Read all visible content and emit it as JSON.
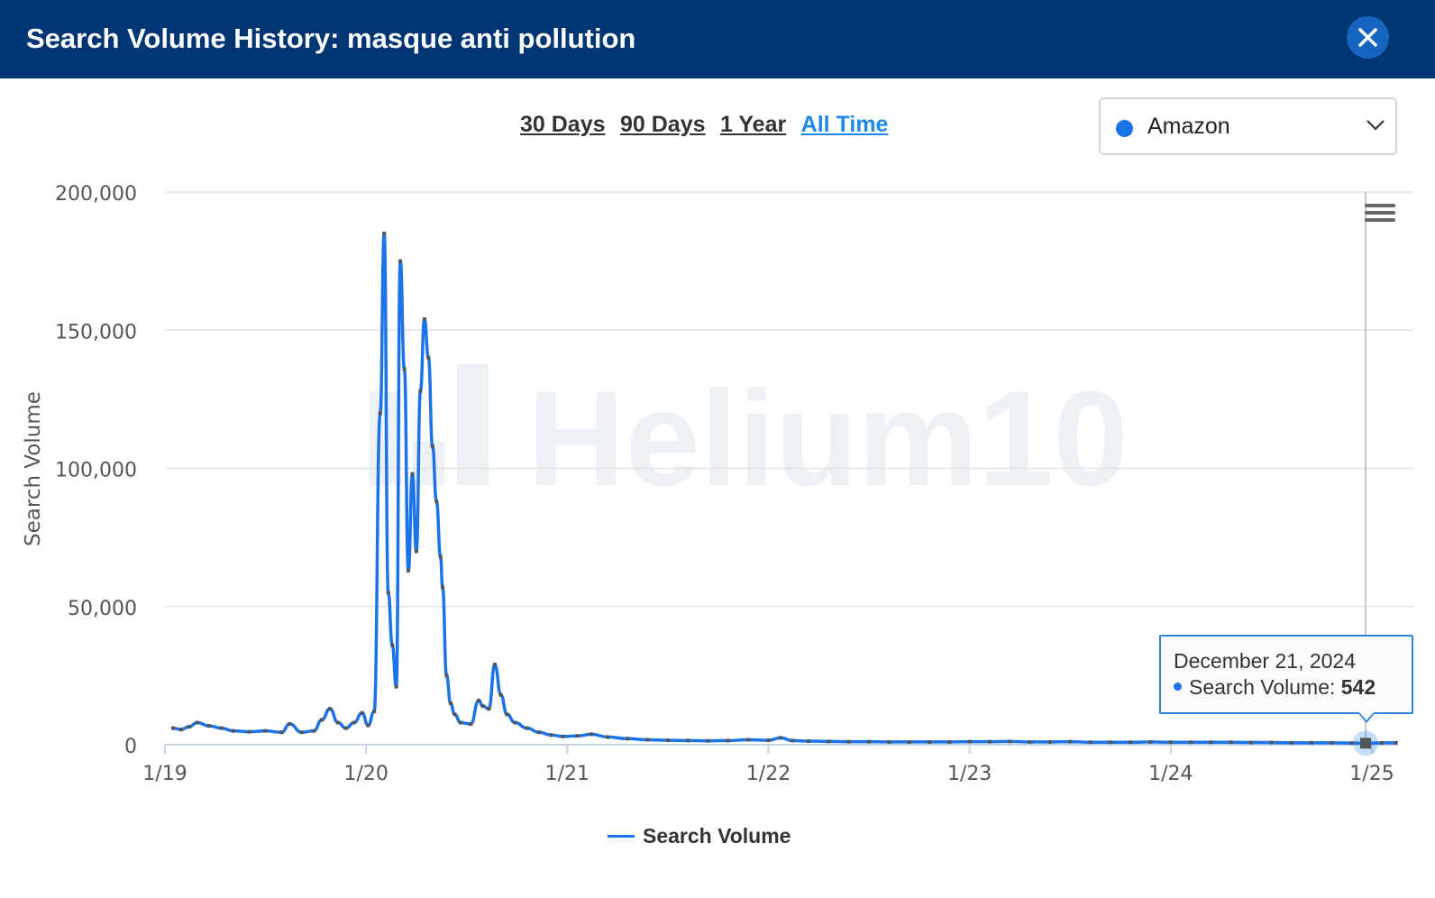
{
  "header": {
    "title": "Search Volume History: masque anti pollution",
    "close_icon": "close-icon"
  },
  "ranges": [
    {
      "label": "30 Days",
      "active": false
    },
    {
      "label": "90 Days",
      "active": false
    },
    {
      "label": "1 Year",
      "active": false
    },
    {
      "label": "All Time",
      "active": true
    }
  ],
  "marketplace": {
    "selected": "Amazon",
    "dot_color": "#1a73e8",
    "icon": "chevron-down-icon"
  },
  "watermark": "Helium 10",
  "tooltip": {
    "date": "December 21, 2024",
    "series": "Search Volume:",
    "value": "542"
  },
  "legend": {
    "label": "Search Volume"
  },
  "chart_data": {
    "type": "line",
    "ylabel": "Search Volume",
    "xlabel": "",
    "ylim": [
      0,
      200000
    ],
    "yticks": [
      "0",
      "50,000",
      "100,000",
      "150,000",
      "200,000"
    ],
    "xticks": [
      "1/19",
      "1/20",
      "1/21",
      "1/22",
      "1/23",
      "1/24",
      "1/25"
    ],
    "x_range": [
      2019.0,
      2025.15
    ],
    "grid": true,
    "series": [
      {
        "name": "Search Volume",
        "color": "#1a73e8",
        "points": [
          [
            2019.04,
            6000
          ],
          [
            2019.08,
            5500
          ],
          [
            2019.12,
            6500
          ],
          [
            2019.16,
            8000
          ],
          [
            2019.22,
            6800
          ],
          [
            2019.28,
            6000
          ],
          [
            2019.34,
            5000
          ],
          [
            2019.42,
            4700
          ],
          [
            2019.5,
            5000
          ],
          [
            2019.58,
            4500
          ],
          [
            2019.62,
            7500
          ],
          [
            2019.68,
            4500
          ],
          [
            2019.74,
            5000
          ],
          [
            2019.78,
            9000
          ],
          [
            2019.82,
            13000
          ],
          [
            2019.86,
            8000
          ],
          [
            2019.9,
            6000
          ],
          [
            2019.94,
            8000
          ],
          [
            2019.98,
            11500
          ],
          [
            2020.01,
            7000
          ],
          [
            2020.04,
            12000
          ],
          [
            2020.07,
            120000
          ],
          [
            2020.09,
            185000
          ],
          [
            2020.11,
            55000
          ],
          [
            2020.13,
            36000
          ],
          [
            2020.15,
            21000
          ],
          [
            2020.17,
            175000
          ],
          [
            2020.19,
            136000
          ],
          [
            2020.21,
            63000
          ],
          [
            2020.23,
            98000
          ],
          [
            2020.25,
            70000
          ],
          [
            2020.27,
            128000
          ],
          [
            2020.29,
            154000
          ],
          [
            2020.31,
            140000
          ],
          [
            2020.33,
            108000
          ],
          [
            2020.35,
            88000
          ],
          [
            2020.37,
            68000
          ],
          [
            2020.38,
            57000
          ],
          [
            2020.4,
            25000
          ],
          [
            2020.42,
            15000
          ],
          [
            2020.44,
            11000
          ],
          [
            2020.47,
            8000
          ],
          [
            2020.52,
            7500
          ],
          [
            2020.56,
            16000
          ],
          [
            2020.58,
            14000
          ],
          [
            2020.61,
            13000
          ],
          [
            2020.64,
            29000
          ],
          [
            2020.67,
            18000
          ],
          [
            2020.7,
            11000
          ],
          [
            2020.74,
            8000
          ],
          [
            2020.8,
            6000
          ],
          [
            2020.86,
            4500
          ],
          [
            2020.92,
            3500
          ],
          [
            2020.98,
            3000
          ],
          [
            2021.05,
            3200
          ],
          [
            2021.12,
            3800
          ],
          [
            2021.2,
            2800
          ],
          [
            2021.3,
            2200
          ],
          [
            2021.4,
            1800
          ],
          [
            2021.5,
            1600
          ],
          [
            2021.6,
            1500
          ],
          [
            2021.7,
            1400
          ],
          [
            2021.8,
            1500
          ],
          [
            2021.9,
            1800
          ],
          [
            2022.0,
            1600
          ],
          [
            2022.06,
            2500
          ],
          [
            2022.12,
            1500
          ],
          [
            2022.2,
            1300
          ],
          [
            2022.3,
            1200
          ],
          [
            2022.4,
            1100
          ],
          [
            2022.5,
            1100
          ],
          [
            2022.6,
            1000
          ],
          [
            2022.7,
            1000
          ],
          [
            2022.8,
            1000
          ],
          [
            2022.9,
            1000
          ],
          [
            2023.0,
            1100
          ],
          [
            2023.1,
            1100
          ],
          [
            2023.2,
            1200
          ],
          [
            2023.3,
            1000
          ],
          [
            2023.4,
            1000
          ],
          [
            2023.5,
            1100
          ],
          [
            2023.6,
            900
          ],
          [
            2023.7,
            900
          ],
          [
            2023.8,
            900
          ],
          [
            2023.9,
            1000
          ],
          [
            2024.0,
            900
          ],
          [
            2024.1,
            900
          ],
          [
            2024.2,
            900
          ],
          [
            2024.3,
            900
          ],
          [
            2024.4,
            800
          ],
          [
            2024.5,
            800
          ],
          [
            2024.6,
            700
          ],
          [
            2024.7,
            700
          ],
          [
            2024.8,
            700
          ],
          [
            2024.9,
            600
          ],
          [
            2024.97,
            542
          ],
          [
            2025.05,
            650
          ],
          [
            2025.12,
            700
          ]
        ]
      }
    ]
  }
}
